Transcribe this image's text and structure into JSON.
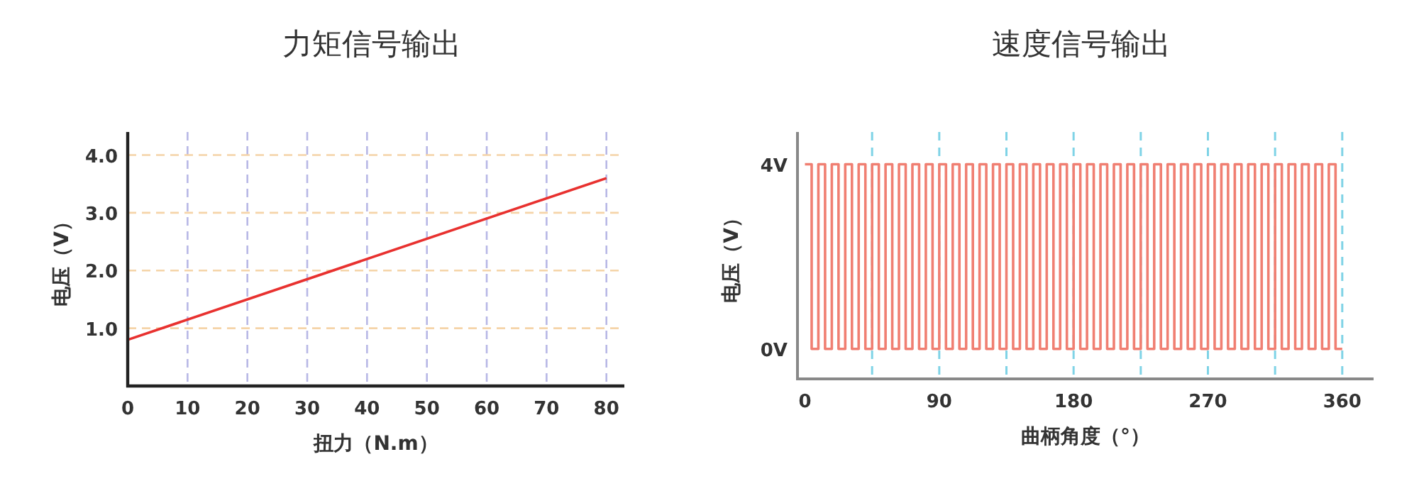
{
  "chart_data": [
    {
      "type": "line",
      "title": "力矩信号输出",
      "xlabel": "扭力（N.m）",
      "ylabel": "电压（V）",
      "x": [
        0,
        80
      ],
      "series": [
        {
          "color": "#e8312f",
          "values": [
            0.8,
            3.6
          ]
        }
      ],
      "xlim": [
        0,
        83
      ],
      "ylim": [
        0,
        4.4
      ],
      "xticks": [
        0,
        10,
        20,
        30,
        40,
        50,
        60,
        70,
        80
      ],
      "yticks": [
        {
          "value": 1,
          "label": "1.0"
        },
        {
          "value": 2,
          "label": "2.0"
        },
        {
          "value": 3,
          "label": "3.0"
        },
        {
          "value": 4,
          "label": "4.0"
        }
      ],
      "grid": true
    },
    {
      "type": "step",
      "title": "速度信号输出",
      "xlabel": "曲柄角度（°）",
      "ylabel": "电压（V）",
      "x": [
        0,
        4.5,
        9,
        13.5,
        18,
        22.5,
        27,
        31.5,
        36,
        40.5,
        45,
        49.5,
        54,
        58.5,
        63,
        67.5,
        72,
        76.5,
        81,
        85.5,
        90,
        94.5,
        99,
        103.5,
        108,
        112.5,
        117,
        121.5,
        126,
        130.5,
        135,
        139.5,
        144,
        148.5,
        153,
        157.5,
        162,
        166.5,
        171,
        175.5,
        180,
        184.5,
        189,
        193.5,
        198,
        202.5,
        207,
        211.5,
        216,
        220.5,
        225,
        229.5,
        234,
        238.5,
        243,
        247.5,
        252,
        256.5,
        261,
        265.5,
        270,
        274.5,
        279,
        283.5,
        288,
        292.5,
        297,
        301.5,
        306,
        310.5,
        315,
        319.5,
        324,
        328.5,
        333,
        337.5,
        342,
        346.5,
        351,
        355.5,
        360
      ],
      "series": [
        {
          "color": "#f07f72",
          "values": [
            4,
            0,
            4,
            0,
            4,
            0,
            4,
            0,
            4,
            0,
            4,
            0,
            4,
            0,
            4,
            0,
            4,
            0,
            4,
            0,
            4,
            0,
            4,
            0,
            4,
            0,
            4,
            0,
            4,
            0,
            4,
            0,
            4,
            0,
            4,
            0,
            4,
            0,
            4,
            0,
            4,
            0,
            4,
            0,
            4,
            0,
            4,
            0,
            4,
            0,
            4,
            0,
            4,
            0,
            4,
            0,
            4,
            0,
            4,
            0,
            4,
            0,
            4,
            0,
            4,
            0,
            4,
            0,
            4,
            0,
            4,
            0,
            4,
            0,
            4,
            0,
            4,
            0,
            4,
            0,
            0
          ]
        }
      ],
      "xlim": [
        -5,
        381
      ],
      "ylim": [
        -0.65,
        4.7
      ],
      "xticks": [
        0,
        90,
        180,
        270,
        360
      ],
      "yticks": [
        {
          "value": 0,
          "label": "0V"
        },
        {
          "value": 4,
          "label": "4V"
        }
      ],
      "ref_lines": [
        {
          "axis": "x",
          "value": 45,
          "color": "#7fd3e6",
          "line_style": "dashed"
        },
        {
          "axis": "x",
          "value": 90,
          "color": "#7fd3e6",
          "line_style": "dashed"
        },
        {
          "axis": "x",
          "value": 135,
          "color": "#7fd3e6",
          "line_style": "dashed"
        },
        {
          "axis": "x",
          "value": 180,
          "color": "#7fd3e6",
          "line_style": "dashed"
        },
        {
          "axis": "x",
          "value": 225,
          "color": "#7fd3e6",
          "line_style": "dashed"
        },
        {
          "axis": "x",
          "value": 270,
          "color": "#7fd3e6",
          "line_style": "dashed"
        },
        {
          "axis": "x",
          "value": 315,
          "color": "#7fd3e6",
          "line_style": "dashed"
        },
        {
          "axis": "x",
          "value": 360,
          "color": "#7fd3e6",
          "line_style": "dashed"
        }
      ]
    }
  ]
}
